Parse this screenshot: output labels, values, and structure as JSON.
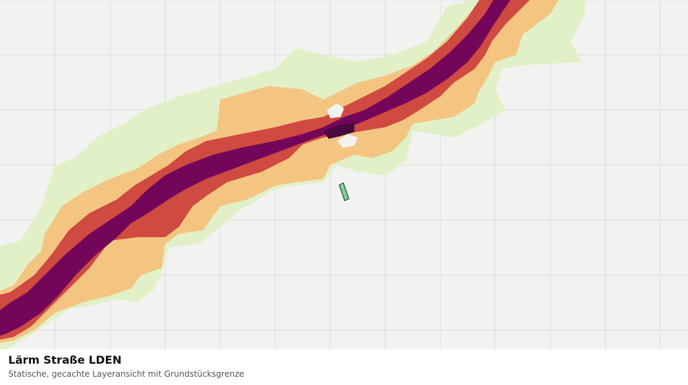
{
  "map": {
    "layer": "noise-road-lden",
    "grid": true,
    "colors": {
      "background": "#f2f3f0",
      "grid": "#dcdedb",
      "band_outer": "#e2f0c8",
      "band_low": "#f3c581",
      "band_mid": "#cf4a40",
      "band_high": "#74065a",
      "band_peak": "#4a0a3f",
      "parcel_fill": "#8fc79a",
      "parcel_stroke": "#1f5a33"
    }
  },
  "caption": {
    "title": "Lärm Straße LDEN",
    "subtitle": "Statische, gecachte Layeransicht mit Grundstücksgrenze"
  }
}
